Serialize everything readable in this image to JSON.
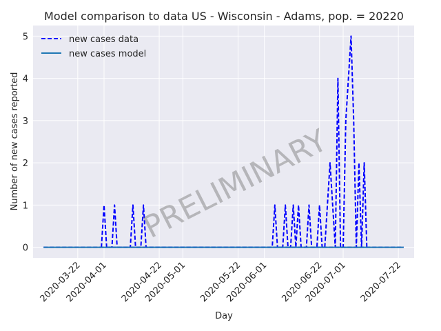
{
  "chart_data": {
    "type": "line",
    "title": "Model comparison to data US - Wisconsin - Adams, pop. = 20220",
    "xlabel": "Day",
    "ylabel": "Number of new cases reported",
    "watermark": "PRELIMINARY",
    "x_start": "2020-03-09",
    "x_end": "2020-07-24",
    "xlim": [
      "2020-03-05",
      "2020-07-28"
    ],
    "ylim": [
      -0.25,
      5.25
    ],
    "x_ticks": [
      "2020-03-22",
      "2020-04-01",
      "2020-04-22",
      "2020-05-01",
      "2020-05-22",
      "2020-06-01",
      "2020-06-22",
      "2020-07-01",
      "2020-07-22"
    ],
    "y_ticks": [
      0,
      1,
      2,
      3,
      4,
      5
    ],
    "grid": true,
    "legend_position": "top-left",
    "series": [
      {
        "name": "new cases data",
        "style": "dashed",
        "color": "#0000ff",
        "points": [
          [
            "2020-03-31",
            0
          ],
          [
            "2020-04-01",
            1
          ],
          [
            "2020-04-02",
            0
          ],
          [
            "2020-04-04",
            0
          ],
          [
            "2020-04-05",
            1
          ],
          [
            "2020-04-06",
            0
          ],
          [
            "2020-04-11",
            0
          ],
          [
            "2020-04-12",
            1
          ],
          [
            "2020-04-13",
            0
          ],
          [
            "2020-04-15",
            0
          ],
          [
            "2020-04-16",
            1
          ],
          [
            "2020-04-17",
            0
          ],
          [
            "2020-06-04",
            0
          ],
          [
            "2020-06-05",
            1
          ],
          [
            "2020-06-06",
            0
          ],
          [
            "2020-06-08",
            0
          ],
          [
            "2020-06-09",
            1
          ],
          [
            "2020-06-10",
            0
          ],
          [
            "2020-06-11",
            0
          ],
          [
            "2020-06-12",
            1
          ],
          [
            "2020-06-13",
            0
          ],
          [
            "2020-06-14",
            1
          ],
          [
            "2020-06-15",
            0
          ],
          [
            "2020-06-17",
            0
          ],
          [
            "2020-06-18",
            1
          ],
          [
            "2020-06-19",
            0
          ],
          [
            "2020-06-21",
            0
          ],
          [
            "2020-06-22",
            1
          ],
          [
            "2020-06-23",
            0
          ],
          [
            "2020-06-24",
            0
          ],
          [
            "2020-06-25",
            1
          ],
          [
            "2020-06-26",
            2
          ],
          [
            "2020-06-27",
            1
          ],
          [
            "2020-06-28",
            0
          ],
          [
            "2020-06-29",
            4
          ],
          [
            "2020-06-30",
            0
          ],
          [
            "2020-07-01",
            0
          ],
          [
            "2020-07-02",
            3
          ],
          [
            "2020-07-03",
            4
          ],
          [
            "2020-07-04",
            5
          ],
          [
            "2020-07-05",
            3
          ],
          [
            "2020-07-06",
            0
          ],
          [
            "2020-07-07",
            2
          ],
          [
            "2020-07-08",
            0
          ],
          [
            "2020-07-09",
            2
          ],
          [
            "2020-07-10",
            0
          ]
        ]
      },
      {
        "name": "new cases model",
        "style": "solid",
        "color": "#1f77b4",
        "points": [
          [
            "2020-03-09",
            0
          ],
          [
            "2020-07-24",
            0
          ]
        ]
      }
    ]
  }
}
